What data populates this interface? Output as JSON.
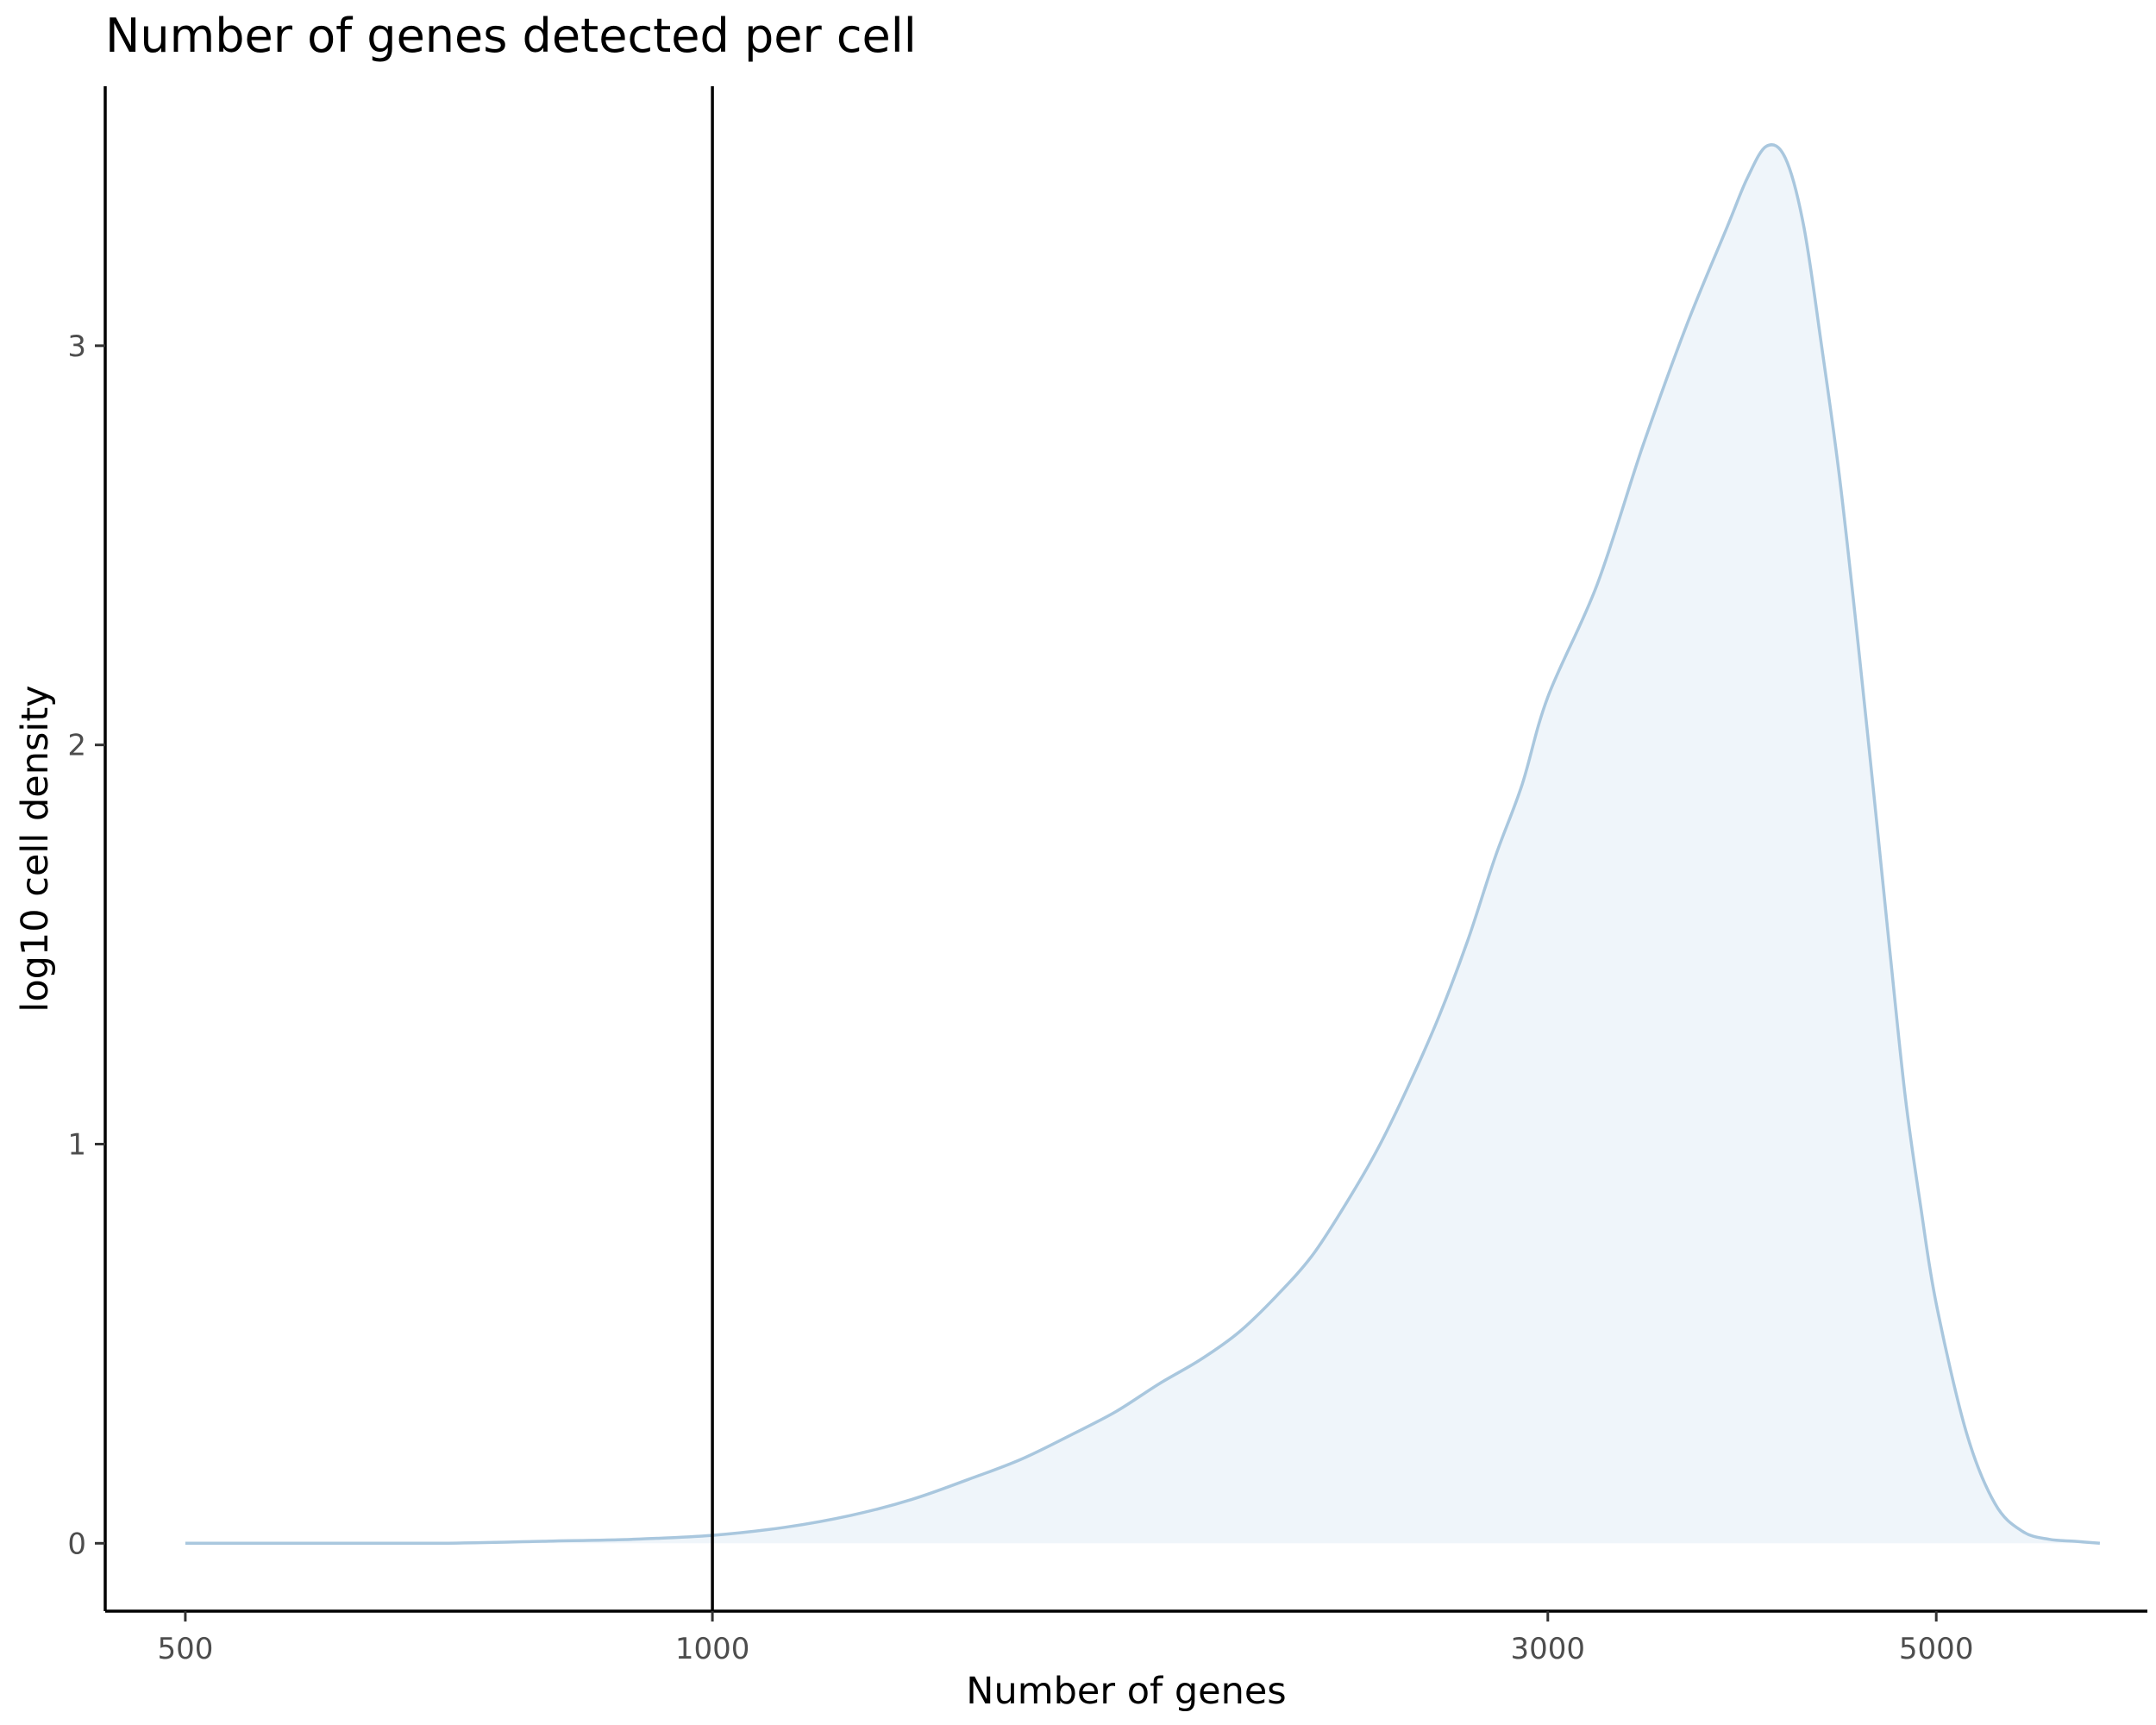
{
  "chart_data": {
    "type": "area",
    "title": "Number of genes detected per cell",
    "xlabel": "Number of genes",
    "ylabel": "log10 cell density",
    "x_scale": "log10",
    "xlim": [
      450,
      6600
    ],
    "ylim": [
      -0.17,
      3.65
    ],
    "x_ticks": [
      500,
      1000,
      3000,
      5000
    ],
    "y_ticks": [
      0,
      1,
      2,
      3
    ],
    "reference_lines": [
      {
        "orientation": "vertical",
        "x": 1000
      }
    ],
    "grid": false,
    "legend": "none",
    "series": [
      {
        "x": [
          500,
          600,
          700,
          800,
          900,
          1000,
          1100,
          1200,
          1300,
          1400,
          1500,
          1600,
          1700,
          1800,
          1900,
          2000,
          2100,
          2200,
          2300,
          2400,
          2500,
          2600,
          2700,
          2800,
          2900,
          3000,
          3200,
          3400,
          3600,
          3800,
          3900,
          4000,
          4100,
          4200,
          4300,
          4400,
          4500,
          4600,
          4700,
          4800,
          4900,
          5000,
          5200,
          5400,
          5600,
          5800,
          6000,
          6200
        ],
        "y": [
          0.0,
          0.0,
          0.0,
          0.005,
          0.01,
          0.02,
          0.04,
          0.07,
          0.11,
          0.16,
          0.21,
          0.27,
          0.33,
          0.4,
          0.46,
          0.53,
          0.62,
          0.72,
          0.85,
          0.99,
          1.15,
          1.32,
          1.51,
          1.72,
          1.9,
          2.12,
          2.4,
          2.75,
          3.05,
          3.3,
          3.42,
          3.5,
          3.47,
          3.3,
          3.0,
          2.68,
          2.3,
          1.9,
          1.5,
          1.12,
          0.84,
          0.6,
          0.28,
          0.1,
          0.03,
          0.01,
          0.005,
          0.0
        ]
      }
    ],
    "colors": {
      "line": "#a9c7de",
      "fill": "#eff5fa",
      "axis": "#000000",
      "ref_line": "#000000"
    }
  }
}
